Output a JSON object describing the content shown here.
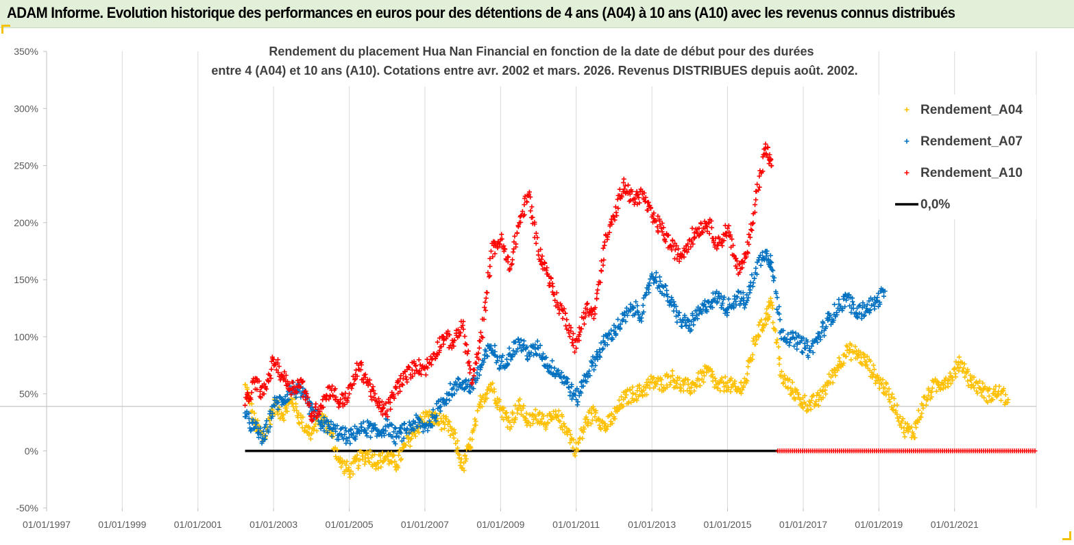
{
  "header": {
    "title": "ADAM Informe. Evolution historique des performances en euros pour des détentions de 4 ans (A04) à 10 ans (A10) avec les revenus connus distribués"
  },
  "colors": {
    "a04": "#ffc000",
    "a07": "#0070c0",
    "a10": "#ff0000",
    "zero": "#000000",
    "header_bg": "#e2efd9"
  },
  "chart_data": {
    "type": "scatter",
    "title_line1": "Rendement du placement Hua Nan Financial  en fonction de la date de début pour des durées",
    "title_line2": "entre 4 (A04) et 10 ans (A10). Cotations entre avr. 2002 et mars. 2026. Revenus DISTRIBUES depuis août. 2002.",
    "xlabel": "",
    "ylabel": "",
    "ylim": [
      -50,
      350
    ],
    "xlim": [
      "1997-01-01",
      "2023-03-01"
    ],
    "y_ticks": [
      "-50%",
      "0%",
      "50%",
      "100%",
      "150%",
      "200%",
      "250%",
      "300%",
      "350%"
    ],
    "x_ticks": [
      "01/01/1997",
      "01/01/1999",
      "01/01/2001",
      "01/01/2003",
      "01/01/2005",
      "01/01/2007",
      "01/01/2009",
      "01/01/2011",
      "01/01/2013",
      "01/01/2015",
      "01/01/2017",
      "01/01/2019",
      "01/01/2021"
    ],
    "legend_position": "top-right",
    "grid": "vertical",
    "series": [
      {
        "name": "Rendement_A04",
        "key": "a04",
        "marker": "+",
        "points": [
          [
            "2002-04-01",
            58
          ],
          [
            "2002-07-01",
            25
          ],
          [
            "2002-10-01",
            10
          ],
          [
            "2003-01-01",
            40
          ],
          [
            "2003-04-01",
            32
          ],
          [
            "2003-07-01",
            45
          ],
          [
            "2003-10-01",
            25
          ],
          [
            "2004-01-01",
            15
          ],
          [
            "2004-04-01",
            30
          ],
          [
            "2004-07-01",
            18
          ],
          [
            "2004-10-01",
            -10
          ],
          [
            "2005-01-01",
            -18
          ],
          [
            "2005-04-01",
            -8
          ],
          [
            "2005-07-01",
            -3
          ],
          [
            "2005-10-01",
            -10
          ],
          [
            "2006-01-01",
            -5
          ],
          [
            "2006-04-01",
            -12
          ],
          [
            "2006-07-01",
            5
          ],
          [
            "2006-10-01",
            18
          ],
          [
            "2007-01-01",
            30
          ],
          [
            "2007-04-01",
            28
          ],
          [
            "2007-07-01",
            25
          ],
          [
            "2007-10-01",
            15
          ],
          [
            "2008-01-01",
            -15
          ],
          [
            "2008-04-01",
            10
          ],
          [
            "2008-07-01",
            45
          ],
          [
            "2008-10-01",
            58
          ],
          [
            "2009-01-01",
            38
          ],
          [
            "2009-04-01",
            25
          ],
          [
            "2009-07-01",
            40
          ],
          [
            "2009-10-01",
            25
          ],
          [
            "2010-01-01",
            32
          ],
          [
            "2010-04-01",
            25
          ],
          [
            "2010-07-01",
            30
          ],
          [
            "2010-10-01",
            20
          ],
          [
            "2011-01-01",
            0
          ],
          [
            "2011-04-01",
            25
          ],
          [
            "2011-07-01",
            35
          ],
          [
            "2011-10-01",
            20
          ],
          [
            "2012-01-01",
            30
          ],
          [
            "2012-04-01",
            45
          ],
          [
            "2012-07-01",
            50
          ],
          [
            "2012-10-01",
            52
          ],
          [
            "2013-01-01",
            60
          ],
          [
            "2013-04-01",
            58
          ],
          [
            "2013-07-01",
            65
          ],
          [
            "2013-10-01",
            58
          ],
          [
            "2014-01-01",
            55
          ],
          [
            "2014-04-01",
            62
          ],
          [
            "2014-07-01",
            70
          ],
          [
            "2014-10-01",
            55
          ],
          [
            "2015-01-01",
            60
          ],
          [
            "2015-04-01",
            52
          ],
          [
            "2015-07-01",
            62
          ],
          [
            "2015-10-01",
            100
          ],
          [
            "2016-01-01",
            115
          ],
          [
            "2016-03-01",
            130
          ],
          [
            "2016-06-01",
            65
          ],
          [
            "2016-09-01",
            55
          ],
          [
            "2016-12-01",
            45
          ],
          [
            "2017-03-01",
            40
          ],
          [
            "2017-06-01",
            45
          ],
          [
            "2017-09-01",
            60
          ],
          [
            "2017-12-01",
            75
          ],
          [
            "2018-03-01",
            88
          ],
          [
            "2018-06-01",
            85
          ],
          [
            "2018-09-01",
            78
          ],
          [
            "2018-12-01",
            65
          ],
          [
            "2019-03-01",
            55
          ],
          [
            "2019-06-01",
            40
          ],
          [
            "2019-09-01",
            20
          ],
          [
            "2019-12-01",
            15
          ],
          [
            "2020-03-01",
            40
          ],
          [
            "2020-06-01",
            55
          ],
          [
            "2020-09-01",
            60
          ],
          [
            "2020-12-01",
            65
          ],
          [
            "2021-03-01",
            78
          ],
          [
            "2021-06-01",
            62
          ],
          [
            "2021-09-01",
            55
          ],
          [
            "2021-12-01",
            48
          ],
          [
            "2022-03-01",
            52
          ],
          [
            "2022-06-01",
            45
          ]
        ]
      },
      {
        "name": "Rendement_A07",
        "key": "a07",
        "marker": "+",
        "points": [
          [
            "2002-04-01",
            30
          ],
          [
            "2002-07-01",
            20
          ],
          [
            "2002-10-01",
            10
          ],
          [
            "2003-01-01",
            40
          ],
          [
            "2003-04-01",
            45
          ],
          [
            "2003-07-01",
            55
          ],
          [
            "2003-10-01",
            50
          ],
          [
            "2004-01-01",
            35
          ],
          [
            "2004-04-01",
            25
          ],
          [
            "2004-07-01",
            20
          ],
          [
            "2004-10-01",
            15
          ],
          [
            "2005-01-01",
            12
          ],
          [
            "2005-04-01",
            18
          ],
          [
            "2005-07-01",
            20
          ],
          [
            "2005-10-01",
            15
          ],
          [
            "2006-01-01",
            22
          ],
          [
            "2006-04-01",
            12
          ],
          [
            "2006-07-01",
            18
          ],
          [
            "2006-10-01",
            25
          ],
          [
            "2007-01-01",
            20
          ],
          [
            "2007-04-01",
            30
          ],
          [
            "2007-07-01",
            45
          ],
          [
            "2007-10-01",
            55
          ],
          [
            "2008-01-01",
            60
          ],
          [
            "2008-04-01",
            55
          ],
          [
            "2008-07-01",
            75
          ],
          [
            "2008-10-01",
            92
          ],
          [
            "2009-01-01",
            75
          ],
          [
            "2009-04-01",
            85
          ],
          [
            "2009-07-01",
            95
          ],
          [
            "2009-10-01",
            85
          ],
          [
            "2010-01-01",
            90
          ],
          [
            "2010-04-01",
            75
          ],
          [
            "2010-07-01",
            70
          ],
          [
            "2010-10-01",
            60
          ],
          [
            "2011-01-01",
            45
          ],
          [
            "2011-04-01",
            65
          ],
          [
            "2011-07-01",
            80
          ],
          [
            "2011-10-01",
            95
          ],
          [
            "2012-01-01",
            105
          ],
          [
            "2012-04-01",
            115
          ],
          [
            "2012-07-01",
            125
          ],
          [
            "2012-10-01",
            120
          ],
          [
            "2013-01-01",
            155
          ],
          [
            "2013-04-01",
            145
          ],
          [
            "2013-07-01",
            130
          ],
          [
            "2013-10-01",
            115
          ],
          [
            "2014-01-01",
            110
          ],
          [
            "2014-04-01",
            120
          ],
          [
            "2014-07-01",
            130
          ],
          [
            "2014-10-01",
            135
          ],
          [
            "2015-01-01",
            125
          ],
          [
            "2015-04-01",
            135
          ],
          [
            "2015-07-01",
            130
          ],
          [
            "2015-10-01",
            160
          ],
          [
            "2016-01-01",
            175
          ],
          [
            "2016-03-01",
            165
          ],
          [
            "2016-06-01",
            105
          ],
          [
            "2016-09-01",
            98
          ],
          [
            "2016-12-01",
            95
          ],
          [
            "2017-03-01",
            88
          ],
          [
            "2017-06-01",
            100
          ],
          [
            "2017-09-01",
            115
          ],
          [
            "2017-12-01",
            125
          ],
          [
            "2018-03-01",
            135
          ],
          [
            "2018-06-01",
            120
          ],
          [
            "2018-09-01",
            125
          ],
          [
            "2018-12-01",
            130
          ],
          [
            "2019-03-01",
            140
          ]
        ]
      },
      {
        "name": "Rendement_A10",
        "key": "a10",
        "marker": "+",
        "points": [
          [
            "2002-04-01",
            40
          ],
          [
            "2002-07-01",
            60
          ],
          [
            "2002-10-01",
            50
          ],
          [
            "2003-01-01",
            80
          ],
          [
            "2003-04-01",
            65
          ],
          [
            "2003-07-01",
            55
          ],
          [
            "2003-10-01",
            60
          ],
          [
            "2004-01-01",
            30
          ],
          [
            "2004-04-01",
            40
          ],
          [
            "2004-07-01",
            55
          ],
          [
            "2004-10-01",
            42
          ],
          [
            "2005-01-01",
            50
          ],
          [
            "2005-04-01",
            75
          ],
          [
            "2005-07-01",
            60
          ],
          [
            "2005-10-01",
            40
          ],
          [
            "2006-01-01",
            35
          ],
          [
            "2006-04-01",
            55
          ],
          [
            "2006-07-01",
            65
          ],
          [
            "2006-10-01",
            75
          ],
          [
            "2007-01-01",
            72
          ],
          [
            "2007-04-01",
            85
          ],
          [
            "2007-07-01",
            100
          ],
          [
            "2007-10-01",
            95
          ],
          [
            "2008-01-01",
            110
          ],
          [
            "2008-04-01",
            60
          ],
          [
            "2008-07-01",
            100
          ],
          [
            "2008-10-01",
            175
          ],
          [
            "2009-01-01",
            185
          ],
          [
            "2009-04-01",
            160
          ],
          [
            "2009-07-01",
            200
          ],
          [
            "2009-10-01",
            225
          ],
          [
            "2010-01-01",
            175
          ],
          [
            "2010-04-01",
            155
          ],
          [
            "2010-07-01",
            130
          ],
          [
            "2010-10-01",
            115
          ],
          [
            "2011-01-01",
            90
          ],
          [
            "2011-04-01",
            125
          ],
          [
            "2011-07-01",
            120
          ],
          [
            "2011-10-01",
            180
          ],
          [
            "2012-01-01",
            205
          ],
          [
            "2012-04-01",
            235
          ],
          [
            "2012-07-01",
            220
          ],
          [
            "2012-10-01",
            225
          ],
          [
            "2013-01-01",
            205
          ],
          [
            "2013-04-01",
            195
          ],
          [
            "2013-07-01",
            180
          ],
          [
            "2013-10-01",
            170
          ],
          [
            "2014-01-01",
            185
          ],
          [
            "2014-04-01",
            195
          ],
          [
            "2014-07-01",
            200
          ],
          [
            "2014-10-01",
            180
          ],
          [
            "2015-01-01",
            195
          ],
          [
            "2015-04-01",
            160
          ],
          [
            "2015-07-01",
            170
          ],
          [
            "2015-10-01",
            220
          ],
          [
            "2016-01-01",
            265
          ],
          [
            "2016-03-01",
            250
          ]
        ]
      },
      {
        "name": "0,0%",
        "key": "zero",
        "type": "line",
        "x_range": [
          "2002-04-01",
          "2016-05-01"
        ],
        "y": 0
      }
    ],
    "zero_markers": {
      "key": "a10",
      "x_range": [
        "2016-05-01",
        "2023-03-01"
      ],
      "y": 0
    },
    "reference_line": {
      "y": 39
    }
  }
}
